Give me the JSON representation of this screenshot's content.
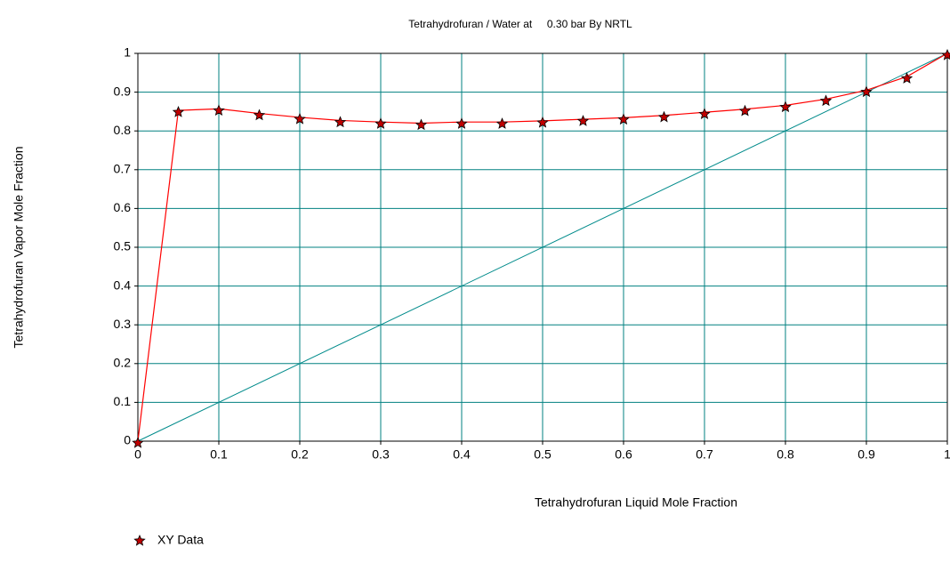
{
  "chart_data": {
    "type": "line",
    "title": "Tetrahydrofuran / Water at     0.30 bar By NRTL",
    "x_label": "Tetrahydrofuran Liquid Mole Fraction",
    "y_label": "Tetrahydrofuran Vapor Mole Fraction",
    "x": [
      0,
      0.05,
      0.1,
      0.15,
      0.2,
      0.25,
      0.3,
      0.35,
      0.4,
      0.45,
      0.5,
      0.55,
      0.6,
      0.65,
      0.7,
      0.75,
      0.8,
      0.85,
      0.9,
      0.95,
      1
    ],
    "series": [
      {
        "name": "XY Data",
        "color": "#ff0000",
        "marker_color": "#c00000",
        "values": [
          0,
          0.853,
          0.857,
          0.845,
          0.835,
          0.827,
          0.823,
          0.82,
          0.823,
          0.823,
          0.826,
          0.83,
          0.834,
          0.84,
          0.848,
          0.856,
          0.866,
          0.882,
          0.905,
          0.94,
          1
        ]
      }
    ],
    "reference_line": {
      "x": [
        0,
        1
      ],
      "y": [
        0,
        1
      ],
      "color": "#008b8b"
    },
    "xlim": [
      0,
      1
    ],
    "ylim": [
      0,
      1
    ],
    "xticks": [
      0,
      0.1,
      0.2,
      0.3,
      0.4,
      0.5,
      0.6,
      0.7,
      0.8,
      0.9,
      1
    ],
    "yticks": [
      0,
      0.1,
      0.2,
      0.3,
      0.4,
      0.5,
      0.6,
      0.7,
      0.8,
      0.9,
      1
    ],
    "grid": true,
    "grid_color": "#008080",
    "legend": "bottom-left"
  }
}
